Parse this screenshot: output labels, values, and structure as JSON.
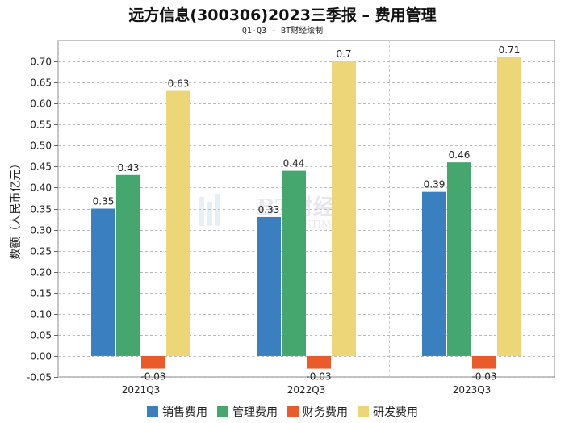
{
  "chart_data": {
    "type": "bar",
    "title": "远方信息(300306)2023三季报 – 费用管理",
    "subtitle": "Q1-Q3 - BT财经绘制",
    "xlabel": "",
    "ylabel": "数额（人民币亿元）",
    "ylim": [
      -0.05,
      0.75
    ],
    "yticks": [
      "-0.05",
      "0.00",
      "0.05",
      "0.10",
      "0.15",
      "0.20",
      "0.25",
      "0.30",
      "0.35",
      "0.40",
      "0.45",
      "0.50",
      "0.55",
      "0.60",
      "0.65",
      "0.70"
    ],
    "categories": [
      "2021Q3",
      "2022Q3",
      "2023Q3"
    ],
    "series": [
      {
        "name": "销售费用",
        "color": "#3a7fc0",
        "values": [
          0.35,
          0.33,
          0.39
        ],
        "labels": [
          "0.35",
          "0.33",
          "0.39"
        ]
      },
      {
        "name": "管理费用",
        "color": "#45a66e",
        "values": [
          0.43,
          0.44,
          0.46
        ],
        "labels": [
          "0.43",
          "0.44",
          "0.46"
        ]
      },
      {
        "name": "财务费用",
        "color": "#ea5a2a",
        "values": [
          -0.03,
          -0.03,
          -0.03
        ],
        "labels": [
          "-0.03",
          "-0.03",
          "-0.03"
        ]
      },
      {
        "name": "研发费用",
        "color": "#ecd677",
        "values": [
          0.63,
          0.7,
          0.71
        ],
        "labels": [
          "0.63",
          "0.7",
          "0.71"
        ]
      }
    ],
    "grid": true,
    "legend": "bottom-center",
    "watermark": {
      "brand": "BT财经",
      "sub": "BUSINESSTIMES"
    }
  }
}
